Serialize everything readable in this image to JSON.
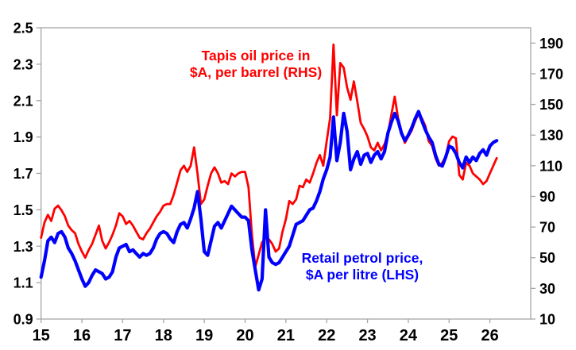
{
  "chart_data": {
    "type": "line",
    "title": "",
    "x": {
      "start": "2015-01",
      "end": "2026-03",
      "frequency": "monthly",
      "domain_end": "2027-01"
    },
    "x_tick_labels": [
      "15",
      "16",
      "17",
      "18",
      "19",
      "20",
      "21",
      "22",
      "23",
      "24",
      "25",
      "26"
    ],
    "left_axis": {
      "min": 0.9,
      "max": 2.5,
      "ticks": [
        "2.5",
        "2.3",
        "2.1",
        "1.9",
        "1.7",
        "1.5",
        "1.3",
        "1.1",
        "0.9"
      ]
    },
    "right_axis": {
      "min": 10,
      "max": 200,
      "ticks": [
        "190",
        "170",
        "150",
        "130",
        "110",
        "90",
        "70",
        "50",
        "30",
        "10"
      ]
    },
    "grid": false,
    "legend_position": "in-plot-annotations",
    "series": [
      {
        "name": "Tapis oil price in $A, per barrel (RHS)",
        "axis": "right",
        "color": "#ff0000",
        "values": [
          63,
          73,
          78,
          74,
          82,
          84,
          81,
          77,
          71,
          68,
          66,
          59,
          54,
          50,
          55,
          59,
          65,
          71,
          61,
          56,
          60,
          65,
          71,
          79,
          77,
          72,
          74,
          71,
          67,
          63,
          62,
          66,
          69,
          73,
          77,
          80,
          84,
          85,
          85,
          91,
          99,
          107,
          110,
          106,
          110,
          122,
          105,
          85,
          88,
          97,
          105,
          109,
          105,
          99,
          100,
          98,
          105,
          103,
          105,
          106,
          106,
          96,
          65,
          44,
          52,
          60,
          63,
          62,
          59,
          54,
          56,
          67,
          75,
          87,
          85,
          88,
          97,
          96,
          101,
          99,
          105,
          112,
          117,
          110,
          126,
          141,
          189,
          143,
          177,
          174,
          161,
          153,
          165,
          152,
          138,
          134,
          129,
          122,
          120,
          125,
          120,
          124,
          131,
          143,
          155,
          141,
          132,
          125,
          129,
          133,
          139,
          144,
          141,
          136,
          126,
          123,
          115,
          110,
          112,
          116,
          126,
          129,
          128,
          104,
          101,
          112,
          110,
          105,
          103,
          101,
          98,
          100,
          105,
          110,
          115
        ]
      },
      {
        "name": "Retail petrol price, $A per litre (LHS)",
        "axis": "left",
        "color": "#0000ff",
        "values": [
          1.13,
          1.22,
          1.33,
          1.35,
          1.32,
          1.37,
          1.38,
          1.35,
          1.29,
          1.26,
          1.22,
          1.17,
          1.12,
          1.08,
          1.1,
          1.14,
          1.17,
          1.16,
          1.15,
          1.12,
          1.13,
          1.16,
          1.24,
          1.29,
          1.3,
          1.31,
          1.27,
          1.28,
          1.26,
          1.24,
          1.26,
          1.25,
          1.26,
          1.29,
          1.34,
          1.37,
          1.38,
          1.37,
          1.34,
          1.32,
          1.38,
          1.42,
          1.43,
          1.4,
          1.45,
          1.51,
          1.6,
          1.45,
          1.27,
          1.25,
          1.33,
          1.41,
          1.43,
          1.4,
          1.44,
          1.48,
          1.52,
          1.5,
          1.48,
          1.46,
          1.46,
          1.44,
          1.28,
          1.17,
          1.06,
          1.12,
          1.5,
          1.24,
          1.21,
          1.2,
          1.21,
          1.24,
          1.27,
          1.3,
          1.36,
          1.42,
          1.43,
          1.44,
          1.47,
          1.5,
          1.51,
          1.55,
          1.6,
          1.67,
          1.72,
          1.79,
          2.01,
          1.77,
          1.87,
          2.03,
          1.93,
          1.72,
          1.78,
          1.82,
          1.75,
          1.8,
          1.81,
          1.76,
          1.8,
          1.82,
          1.78,
          1.82,
          1.92,
          1.98,
          2.03,
          1.99,
          1.92,
          1.88,
          1.91,
          1.95,
          2.0,
          2.04,
          1.99,
          1.94,
          1.9,
          1.87,
          1.8,
          1.75,
          1.74,
          1.79,
          1.85,
          1.84,
          1.81,
          1.76,
          1.73,
          1.79,
          1.76,
          1.79,
          1.77,
          1.81,
          1.83,
          1.8,
          1.85,
          1.87,
          1.88
        ]
      }
    ],
    "annotations": [
      {
        "line1": "Tapis oil price in",
        "line2": "$A, per barrel (RHS)",
        "color": "#ff0000",
        "cx": 322,
        "top": 60
      },
      {
        "line1": "Retail petrol price,",
        "line2": "$A per litre (LHS)",
        "color": "#0000ff",
        "cx": 456,
        "top": 315
      }
    ]
  }
}
